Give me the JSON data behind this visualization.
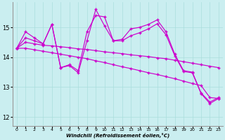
{
  "xlabel": "Windchill (Refroidissement éolien,°C)",
  "bg_color": "#caeef0",
  "line_color": "#cc00cc",
  "grid_color": "#aadddd",
  "xlim": [
    -0.5,
    23.5
  ],
  "ylim": [
    11.7,
    15.85
  ],
  "yticks": [
    12,
    13,
    14,
    15
  ],
  "xticks": [
    0,
    1,
    2,
    3,
    4,
    5,
    6,
    7,
    8,
    9,
    10,
    11,
    12,
    13,
    14,
    15,
    16,
    17,
    18,
    19,
    20,
    21,
    22,
    23
  ],
  "x": [
    0,
    1,
    2,
    3,
    4,
    5,
    6,
    7,
    8,
    9,
    10,
    11,
    12,
    13,
    14,
    15,
    16,
    17,
    18,
    19,
    20,
    21,
    22,
    23
  ],
  "s1": [
    14.3,
    14.85,
    14.65,
    14.45,
    15.1,
    13.65,
    13.75,
    13.55,
    14.85,
    15.4,
    15.35,
    14.55,
    14.6,
    14.95,
    15.0,
    15.1,
    15.25,
    14.85,
    14.1,
    13.55,
    13.5,
    12.8,
    12.5,
    12.65
  ],
  "s2": [
    14.3,
    14.65,
    14.55,
    14.45,
    15.1,
    13.65,
    13.72,
    13.48,
    14.55,
    15.6,
    15.05,
    14.55,
    14.55,
    14.72,
    14.82,
    14.95,
    15.12,
    14.75,
    14.05,
    13.52,
    13.48,
    12.78,
    12.45,
    12.62
  ],
  "s3": [
    14.3,
    14.5,
    14.45,
    14.4,
    14.38,
    14.35,
    14.32,
    14.28,
    14.26,
    14.22,
    14.18,
    14.15,
    14.12,
    14.08,
    14.05,
    14.02,
    13.98,
    13.95,
    13.9,
    13.85,
    13.8,
    13.75,
    13.7,
    13.65
  ],
  "s4": [
    14.3,
    14.3,
    14.25,
    14.2,
    14.15,
    14.1,
    14.05,
    14.0,
    13.95,
    13.88,
    13.82,
    13.75,
    13.68,
    13.62,
    13.55,
    13.48,
    13.42,
    13.35,
    13.28,
    13.2,
    13.12,
    13.05,
    12.65,
    12.62
  ]
}
